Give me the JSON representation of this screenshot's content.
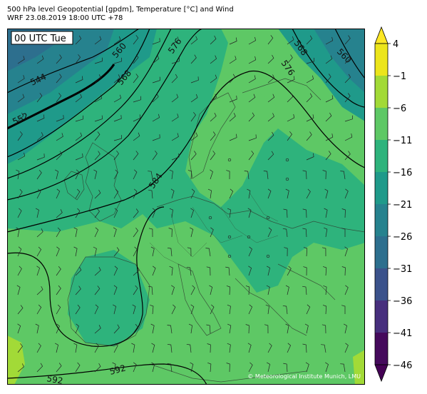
{
  "header": {
    "title_line1": "500 hPa level Geopotential [gpdm], Temperature [°C] and Wind",
    "title_line2": "WRF 23.08.2019 18:00 UTC +78"
  },
  "map": {
    "time_badge": "00 UTC Tue",
    "credit": "© Meteorological Institute Munich, LMU",
    "contour_labels": [
      "544",
      "552",
      "560",
      "568",
      "576",
      "584",
      "592",
      "568",
      "560",
      "576",
      "592"
    ]
  },
  "colorbar": {
    "ticks": [
      "4",
      "−1",
      "−6",
      "−11",
      "−16",
      "−21",
      "−26",
      "−31",
      "−36",
      "−41",
      "−46"
    ],
    "colors": [
      "#ece51b",
      "#a2da37",
      "#5ec865",
      "#2eb37c",
      "#1f9a8a",
      "#26828e",
      "#2d6f8e",
      "#3b528b",
      "#472f7d",
      "#450a5c"
    ],
    "extend_top_color": "#fde725",
    "extend_bottom_color": "#440154"
  }
}
